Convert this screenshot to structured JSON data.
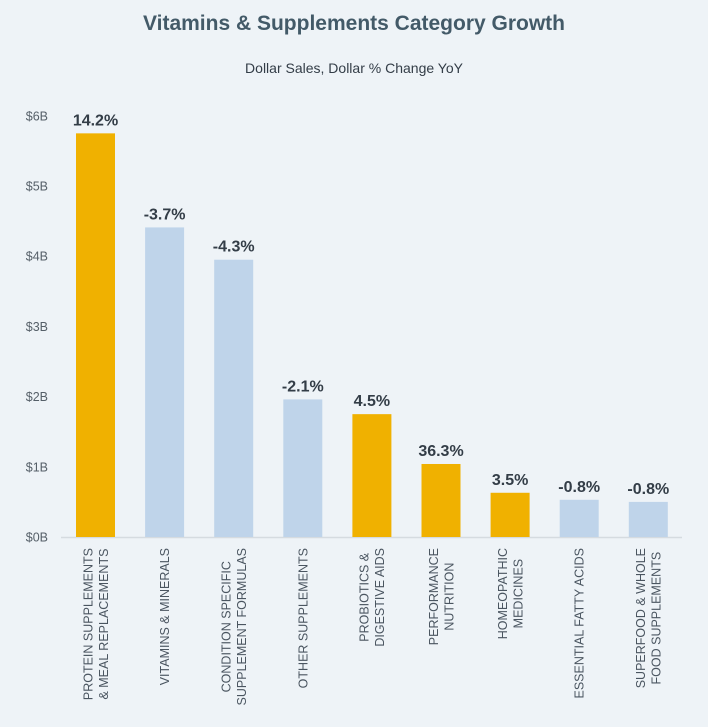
{
  "chart_data": {
    "type": "bar",
    "title": "Vitamins & Supplements Category Growth",
    "subtitle": "Dollar Sales, Dollar % Change YoY",
    "xlabel": "",
    "ylabel": "",
    "ylim": [
      0,
      6
    ],
    "yticks": [
      0,
      1,
      2,
      3,
      4,
      5,
      6
    ],
    "ytick_labels": [
      "$0B",
      "$1B",
      "$2B",
      "$3B",
      "$4B",
      "$5B",
      "$6B"
    ],
    "grid": false,
    "legend": "none",
    "categories": [
      [
        "PROTEIN SUPPLEMENTS",
        "& MEAL REPLACEMENTS"
      ],
      [
        "VITAMINS & MINERALS"
      ],
      [
        "CONDITION SPECIFIC",
        "SUPPLEMENT FORMULAS"
      ],
      [
        "OTHER SUPPLEMENTS"
      ],
      [
        "PROBIOTICS &",
        "DIGESTIVE AIDS"
      ],
      [
        "PERFORMANCE",
        "NUTRITION"
      ],
      [
        "HOMEOPATHIC",
        "MEDICINES"
      ],
      [
        "ESSENTIAL FATTY ACIDS"
      ],
      [
        "SUPERFOOD & WHOLE",
        "FOOD SUPPLEMENTS"
      ]
    ],
    "values_billions": [
      5.75,
      4.41,
      3.95,
      1.96,
      1.75,
      1.04,
      0.63,
      0.53,
      0.5
    ],
    "pct_change_labels": [
      "14.2%",
      "-3.7%",
      "-4.3%",
      "-2.1%",
      "4.5%",
      "36.3%",
      "3.5%",
      "-0.8%",
      "-0.8%"
    ],
    "pct_change": [
      14.2,
      -3.7,
      -4.3,
      -2.1,
      4.5,
      36.3,
      3.5,
      -0.8,
      -0.8
    ],
    "colors": {
      "growth": "#f0b100",
      "decline": "#bfd4ea",
      "axis": "#d5dbe0",
      "background": "#eef3f7"
    }
  }
}
